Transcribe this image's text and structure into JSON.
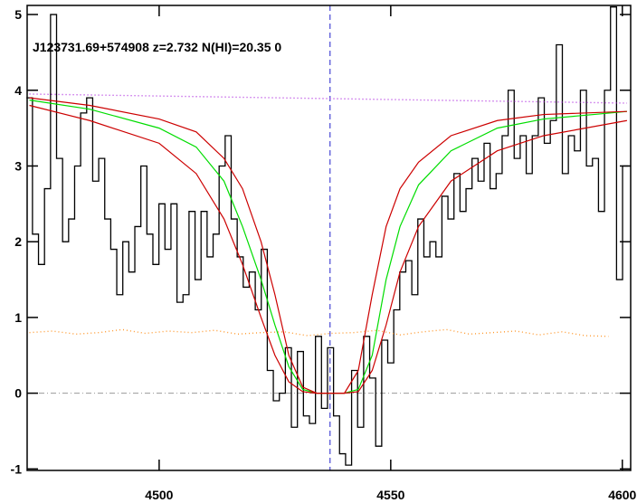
{
  "chart_data": {
    "type": "line",
    "title": "J123731.69+574908 z=2.732 N(HI)=20.35 0",
    "xlim": [
      4471.5,
      4601.8
    ],
    "ylim": [
      -1.02,
      5.12
    ],
    "xticks": [
      4500,
      4550,
      4600
    ],
    "yticks": [
      -1,
      0,
      1,
      2,
      3,
      4,
      5
    ],
    "reference_lines": {
      "y": 0,
      "x": 4536.9
    },
    "series": [
      {
        "type": "step",
        "color": "#000000",
        "style": "solid",
        "x": [
          4472,
          4473.3,
          4474.6,
          4475.9,
          4477.2,
          4478.5,
          4479.8,
          4481.1,
          4482.4,
          4483.7,
          4485,
          4486.3,
          4487.6,
          4488.9,
          4490.2,
          4491.5,
          4492.8,
          4494.1,
          4495.4,
          4496.7,
          4498,
          4499.3,
          4500.6,
          4501.9,
          4503.2,
          4504.5,
          4505.8,
          4507.1,
          4508.4,
          4509.7,
          4511,
          4512.3,
          4513.6,
          4514.9,
          4516.2,
          4517.5,
          4518.8,
          4520.1,
          4521.4,
          4522.7,
          4524,
          4525.3,
          4526.6,
          4527.9,
          4529.2,
          4530.5,
          4531.8,
          4533.1,
          4534.4,
          4535.7,
          4537,
          4538.3,
          4539.6,
          4540.9,
          4542.2,
          4543.5,
          4544.8,
          4546.1,
          4547.4,
          4548.7,
          4550,
          4551.3,
          4552.6,
          4553.9,
          4555.2,
          4556.5,
          4557.8,
          4559.1,
          4560.4,
          4561.7,
          4563,
          4564.3,
          4565.6,
          4566.9,
          4568.2,
          4569.5,
          4570.8,
          4572.1,
          4573.4,
          4574.7,
          4576,
          4577.3,
          4578.6,
          4579.9,
          4581.2,
          4582.5,
          4583.8,
          4585.1,
          4586.4,
          4587.7,
          4589,
          4590.3,
          4591.6,
          4592.9,
          4594.2,
          4595.5,
          4596.8,
          4598.1,
          4599.4,
          4600.7
        ],
        "values": [
          3.9,
          2.1,
          1.7,
          2.7,
          5.0,
          3.1,
          2.0,
          2.3,
          3.0,
          3.7,
          3.9,
          2.8,
          3.1,
          2.3,
          1.9,
          1.3,
          2.0,
          1.6,
          2.2,
          3.0,
          2.1,
          1.7,
          2.5,
          1.9,
          2.5,
          1.2,
          1.3,
          2.4,
          1.5,
          2.4,
          1.8,
          2.1,
          3.0,
          3.4,
          2.3,
          1.8,
          1.4,
          1.6,
          1.1,
          1.9,
          0.3,
          -0.1,
          0.0,
          0.6,
          -0.45,
          0.55,
          -0.3,
          -0.4,
          0.75,
          -0.2,
          0.6,
          -0.3,
          -0.8,
          -0.95,
          0.3,
          -0.45,
          0.75,
          0.2,
          -0.7,
          0.7,
          0.4,
          1.1,
          1.6,
          1.75,
          1.3,
          2.3,
          1.8,
          2.0,
          1.8,
          2.6,
          2.3,
          2.9,
          2.4,
          2.7,
          3.1,
          2.8,
          3.3,
          2.7,
          2.9,
          3.4,
          4.0,
          3.1,
          3.4,
          2.9,
          3.4,
          3.9,
          3.3,
          3.6,
          4.6,
          2.9,
          3.4,
          3.2,
          4.0,
          3.0,
          3.1,
          2.4,
          4.0,
          5.1,
          1.5,
          3.0
        ]
      },
      {
        "type": "line",
        "color": "#00dd00",
        "style": "solid",
        "x": [
          4472,
          4485,
          4500,
          4508,
          4514,
          4518,
          4522,
          4525,
          4528,
          4531,
          4534,
          4540,
          4543,
          4546,
          4549,
          4552,
          4556,
          4563,
          4573,
          4583,
          4601
        ],
        "values": [
          3.87,
          3.75,
          3.5,
          3.25,
          2.8,
          2.2,
          1.5,
          0.9,
          0.35,
          0.05,
          0,
          0,
          0.05,
          0.5,
          1.5,
          2.2,
          2.75,
          3.2,
          3.5,
          3.62,
          3.72
        ]
      },
      {
        "type": "line",
        "color": "#cc0000",
        "style": "solid",
        "x": [
          4472,
          4485,
          4500,
          4508,
          4514,
          4518,
          4522,
          4525,
          4528,
          4531,
          4534,
          4540,
          4543,
          4546,
          4549,
          4552,
          4556,
          4563,
          4573,
          4583,
          4601
        ],
        "values": [
          3.9,
          3.8,
          3.62,
          3.45,
          3.1,
          2.7,
          2.0,
          1.3,
          0.5,
          0.08,
          0,
          0,
          0.3,
          1.3,
          2.2,
          2.7,
          3.05,
          3.4,
          3.6,
          3.68,
          3.72
        ]
      },
      {
        "type": "line",
        "color": "#cc0000",
        "style": "solid",
        "x": [
          4472,
          4485,
          4500,
          4508,
          4514,
          4518,
          4522,
          4525,
          4528,
          4531,
          4534,
          4540,
          4543,
          4546,
          4549,
          4552,
          4556,
          4563,
          4573,
          4583,
          4601
        ],
        "values": [
          3.8,
          3.6,
          3.3,
          2.9,
          2.3,
          1.7,
          1.0,
          0.5,
          0.15,
          0.02,
          0,
          0,
          0.02,
          0.3,
          0.9,
          1.6,
          2.2,
          2.8,
          3.2,
          3.4,
          3.6
        ]
      },
      {
        "type": "line",
        "color": "#b030e0",
        "style": "dotted",
        "x": [
          4472,
          4601
        ],
        "values": [
          3.95,
          3.83
        ]
      },
      {
        "type": "line",
        "color": "#ff9a30",
        "style": "dotted",
        "x": [
          4472,
          4477,
          4482,
          4487,
          4492,
          4497,
          4502,
          4507,
          4512,
          4517,
          4522,
          4527,
          4532,
          4537,
          4542,
          4547,
          4552,
          4557,
          4562,
          4567,
          4572,
          4577,
          4582,
          4587,
          4592,
          4597
        ],
        "values": [
          0.8,
          0.82,
          0.78,
          0.8,
          0.84,
          0.79,
          0.82,
          0.8,
          0.83,
          0.78,
          0.8,
          0.81,
          0.76,
          0.79,
          0.8,
          0.83,
          0.77,
          0.81,
          0.84,
          0.78,
          0.8,
          0.82,
          0.77,
          0.81,
          0.76,
          0.75
        ]
      }
    ]
  }
}
